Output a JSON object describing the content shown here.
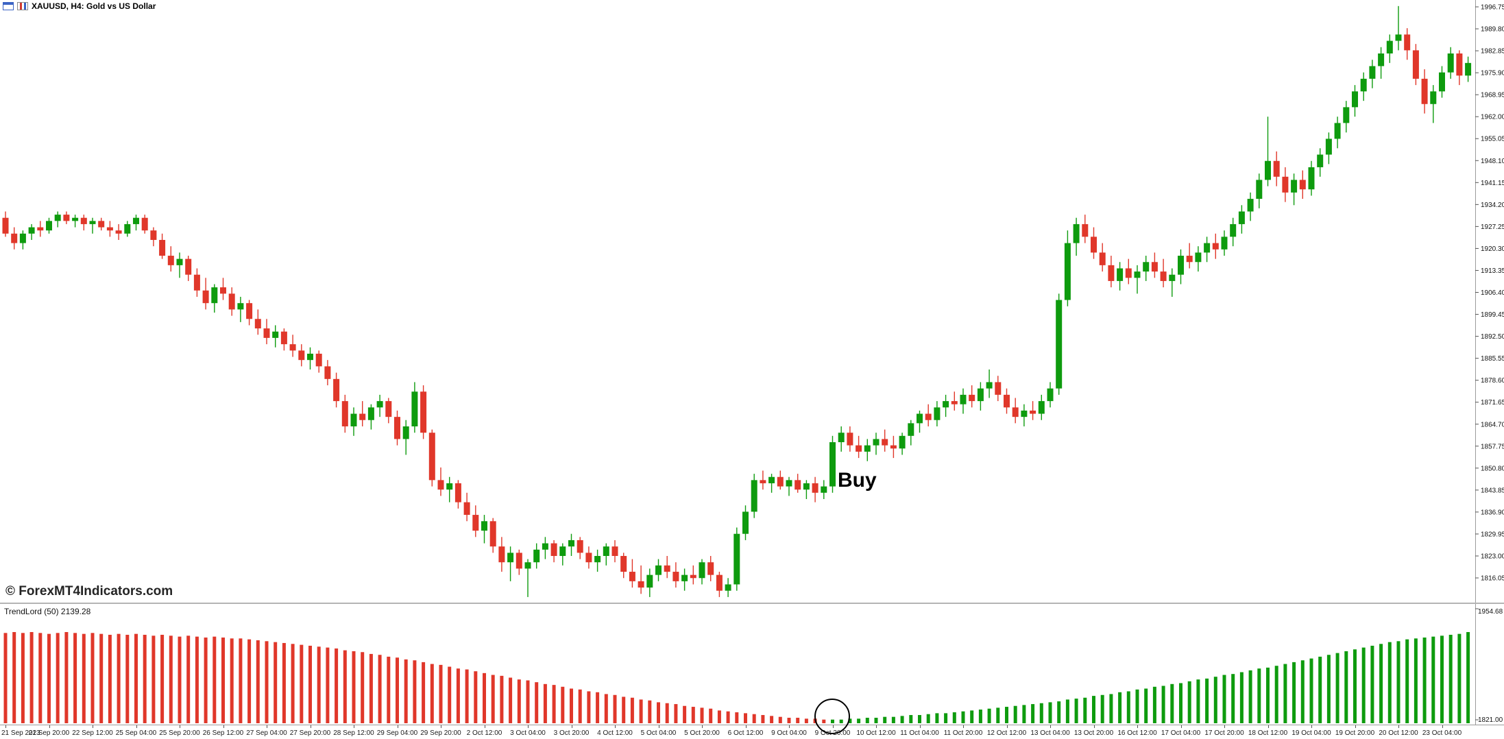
{
  "window": {
    "title": "XAUUSD, H4: Gold vs US Dollar",
    "icons": [
      "window-grid-icon",
      "candlestick-chart-icon"
    ]
  },
  "watermark": "© ForexMT4Indicators.com",
  "annotations": {
    "buy": "Buy"
  },
  "indicator": {
    "label": "TrendLord (50) 2139.28",
    "scale_max": "1954.68",
    "scale_min": "1821.00"
  },
  "colors": {
    "bull": "#0e9b0e",
    "bear": "#e0372a",
    "axis_text": "#111111",
    "separator": "#9a9a9a",
    "annotation": "#000000"
  },
  "chart_data": {
    "type": "candlestick",
    "symbol": "XAUUSD",
    "timeframe": "H4",
    "title": "XAUUSD, H4: Gold vs US Dollar",
    "price_axis": {
      "max": 1996.75,
      "step": 6.95,
      "labels": [
        "1996.75",
        "1989.80",
        "1982.85",
        "1975.90",
        "1968.95",
        "1962.00",
        "1955.05",
        "1948.10",
        "1941.15",
        "1934.20",
        "1927.25",
        "1920.30",
        "1913.35",
        "1906.40",
        "1899.45",
        "1892.50",
        "1885.55",
        "1878.60",
        "1871.65",
        "1864.70",
        "1857.75",
        "1850.80",
        "1843.85",
        "1836.90",
        "1829.95",
        "1823.00",
        "1816.05"
      ]
    },
    "time_axis": {
      "candles_per_label": 5,
      "labels": [
        "21 Sep 2023",
        "21 Sep 20:00",
        "22 Sep 12:00",
        "25 Sep 04:00",
        "25 Sep 20:00",
        "26 Sep 12:00",
        "27 Sep 04:00",
        "27 Sep 20:00",
        "28 Sep 12:00",
        "29 Sep 04:00",
        "29 Sep 20:00",
        "2 Oct 12:00",
        "3 Oct 04:00",
        "3 Oct 20:00",
        "4 Oct 12:00",
        "5 Oct 04:00",
        "5 Oct 20:00",
        "6 Oct 12:00",
        "9 Oct 04:00",
        "9 Oct 20:00",
        "10 Oct 12:00",
        "11 Oct 04:00",
        "11 Oct 20:00",
        "12 Oct 12:00",
        "13 Oct 04:00",
        "13 Oct 20:00",
        "16 Oct 12:00",
        "17 Oct 04:00",
        "17 Oct 20:00",
        "18 Oct 12:00",
        "19 Oct 04:00",
        "19 Oct 20:00",
        "20 Oct 12:00",
        "23 Oct 04:00"
      ]
    },
    "ohlc": [
      [
        1930,
        1932,
        1924,
        1925
      ],
      [
        1925,
        1927,
        1920,
        1922
      ],
      [
        1922,
        1926,
        1920,
        1925
      ],
      [
        1925,
        1928,
        1923,
        1927
      ],
      [
        1927,
        1929,
        1924,
        1926
      ],
      [
        1926,
        1930,
        1925,
        1929
      ],
      [
        1929,
        1932,
        1927,
        1931
      ],
      [
        1931,
        1932,
        1928,
        1929
      ],
      [
        1929,
        1931,
        1927,
        1930
      ],
      [
        1930,
        1931,
        1926,
        1928
      ],
      [
        1928,
        1930,
        1925,
        1929
      ],
      [
        1929,
        1930,
        1926,
        1927
      ],
      [
        1927,
        1929,
        1924,
        1926
      ],
      [
        1926,
        1928,
        1923,
        1925
      ],
      [
        1925,
        1929,
        1924,
        1928
      ],
      [
        1928,
        1931,
        1926,
        1930
      ],
      [
        1930,
        1931,
        1925,
        1926
      ],
      [
        1926,
        1927,
        1921,
        1923
      ],
      [
        1923,
        1925,
        1917,
        1918
      ],
      [
        1918,
        1921,
        1913,
        1915
      ],
      [
        1915,
        1919,
        1911,
        1917
      ],
      [
        1917,
        1918,
        1910,
        1912
      ],
      [
        1912,
        1914,
        1905,
        1907
      ],
      [
        1907,
        1911,
        1901,
        1903
      ],
      [
        1903,
        1909,
        1900,
        1908
      ],
      [
        1908,
        1911,
        1904,
        1906
      ],
      [
        1906,
        1908,
        1899,
        1901
      ],
      [
        1901,
        1905,
        1897,
        1903
      ],
      [
        1903,
        1904,
        1896,
        1898
      ],
      [
        1898,
        1901,
        1893,
        1895
      ],
      [
        1895,
        1898,
        1890,
        1892
      ],
      [
        1892,
        1896,
        1889,
        1894
      ],
      [
        1894,
        1895,
        1888,
        1890
      ],
      [
        1890,
        1893,
        1886,
        1888
      ],
      [
        1888,
        1890,
        1883,
        1885
      ],
      [
        1885,
        1889,
        1882,
        1887
      ],
      [
        1887,
        1888,
        1881,
        1883
      ],
      [
        1883,
        1885,
        1877,
        1879
      ],
      [
        1879,
        1881,
        1870,
        1872
      ],
      [
        1872,
        1874,
        1862,
        1864
      ],
      [
        1864,
        1870,
        1861,
        1868
      ],
      [
        1868,
        1872,
        1864,
        1866
      ],
      [
        1866,
        1871,
        1863,
        1870
      ],
      [
        1870,
        1874,
        1867,
        1872
      ],
      [
        1872,
        1873,
        1865,
        1867
      ],
      [
        1867,
        1869,
        1858,
        1860
      ],
      [
        1860,
        1866,
        1855,
        1864
      ],
      [
        1864,
        1878,
        1862,
        1875
      ],
      [
        1875,
        1877,
        1860,
        1862
      ],
      [
        1862,
        1863,
        1845,
        1847
      ],
      [
        1847,
        1851,
        1842,
        1844
      ],
      [
        1844,
        1848,
        1840,
        1846
      ],
      [
        1846,
        1847,
        1838,
        1840
      ],
      [
        1840,
        1843,
        1834,
        1836
      ],
      [
        1836,
        1839,
        1829,
        1831
      ],
      [
        1831,
        1836,
        1827,
        1834
      ],
      [
        1834,
        1835,
        1824,
        1826
      ],
      [
        1826,
        1829,
        1818,
        1821
      ],
      [
        1821,
        1826,
        1815,
        1824
      ],
      [
        1824,
        1825,
        1817,
        1819
      ],
      [
        1819,
        1822,
        1810,
        1821
      ],
      [
        1821,
        1827,
        1819,
        1825
      ],
      [
        1825,
        1829,
        1822,
        1827
      ],
      [
        1827,
        1828,
        1821,
        1823
      ],
      [
        1823,
        1827,
        1820,
        1826
      ],
      [
        1826,
        1830,
        1823,
        1828
      ],
      [
        1828,
        1829,
        1822,
        1824
      ],
      [
        1824,
        1826,
        1819,
        1821
      ],
      [
        1821,
        1825,
        1818,
        1823
      ],
      [
        1823,
        1827,
        1820,
        1826
      ],
      [
        1826,
        1828,
        1821,
        1823
      ],
      [
        1823,
        1824,
        1816,
        1818
      ],
      [
        1818,
        1822,
        1813,
        1815
      ],
      [
        1815,
        1820,
        1811,
        1813
      ],
      [
        1813,
        1819,
        1810,
        1817
      ],
      [
        1817,
        1822,
        1815,
        1820
      ],
      [
        1820,
        1823,
        1816,
        1818
      ],
      [
        1818,
        1821,
        1813,
        1815
      ],
      [
        1815,
        1819,
        1812,
        1817
      ],
      [
        1817,
        1820,
        1814,
        1816
      ],
      [
        1816,
        1822,
        1814,
        1821
      ],
      [
        1821,
        1823,
        1815,
        1817
      ],
      [
        1817,
        1818,
        1810,
        1812
      ],
      [
        1812,
        1816,
        1810,
        1814
      ],
      [
        1814,
        1832,
        1812,
        1830
      ],
      [
        1830,
        1839,
        1828,
        1837
      ],
      [
        1837,
        1849,
        1835,
        1847
      ],
      [
        1847,
        1850,
        1844,
        1846
      ],
      [
        1846,
        1849,
        1843,
        1848
      ],
      [
        1848,
        1850,
        1844,
        1845
      ],
      [
        1845,
        1848,
        1842,
        1847
      ],
      [
        1847,
        1849,
        1843,
        1844
      ],
      [
        1844,
        1847,
        1841,
        1846
      ],
      [
        1846,
        1848,
        1840,
        1843
      ],
      [
        1843,
        1847,
        1841,
        1845
      ],
      [
        1845,
        1861,
        1843,
        1859
      ],
      [
        1859,
        1864,
        1856,
        1862
      ],
      [
        1862,
        1864,
        1856,
        1858
      ],
      [
        1858,
        1861,
        1854,
        1856
      ],
      [
        1856,
        1860,
        1853,
        1858
      ],
      [
        1858,
        1862,
        1855,
        1860
      ],
      [
        1860,
        1863,
        1856,
        1858
      ],
      [
        1858,
        1861,
        1854,
        1857
      ],
      [
        1857,
        1862,
        1855,
        1861
      ],
      [
        1861,
        1866,
        1858,
        1865
      ],
      [
        1865,
        1869,
        1862,
        1868
      ],
      [
        1868,
        1871,
        1864,
        1866
      ],
      [
        1866,
        1872,
        1864,
        1870
      ],
      [
        1870,
        1874,
        1867,
        1872
      ],
      [
        1872,
        1875,
        1869,
        1871
      ],
      [
        1871,
        1876,
        1868,
        1874
      ],
      [
        1874,
        1877,
        1870,
        1872
      ],
      [
        1872,
        1878,
        1869,
        1876
      ],
      [
        1876,
        1882,
        1873,
        1878
      ],
      [
        1878,
        1880,
        1872,
        1874
      ],
      [
        1874,
        1876,
        1868,
        1870
      ],
      [
        1870,
        1873,
        1865,
        1867
      ],
      [
        1867,
        1871,
        1864,
        1869
      ],
      [
        1869,
        1872,
        1866,
        1868
      ],
      [
        1868,
        1874,
        1866,
        1872
      ],
      [
        1872,
        1878,
        1870,
        1876
      ],
      [
        1876,
        1906,
        1874,
        1904
      ],
      [
        1904,
        1926,
        1902,
        1922
      ],
      [
        1922,
        1930,
        1918,
        1928
      ],
      [
        1928,
        1931,
        1922,
        1924
      ],
      [
        1924,
        1927,
        1917,
        1919
      ],
      [
        1919,
        1922,
        1913,
        1915
      ],
      [
        1915,
        1918,
        1908,
        1910
      ],
      [
        1910,
        1916,
        1907,
        1914
      ],
      [
        1914,
        1917,
        1909,
        1911
      ],
      [
        1911,
        1915,
        1906,
        1913
      ],
      [
        1913,
        1918,
        1910,
        1916
      ],
      [
        1916,
        1919,
        1911,
        1913
      ],
      [
        1913,
        1917,
        1908,
        1910
      ],
      [
        1910,
        1914,
        1905,
        1912
      ],
      [
        1912,
        1920,
        1909,
        1918
      ],
      [
        1918,
        1922,
        1914,
        1916
      ],
      [
        1916,
        1921,
        1913,
        1919
      ],
      [
        1919,
        1924,
        1916,
        1922
      ],
      [
        1922,
        1925,
        1917,
        1920
      ],
      [
        1920,
        1926,
        1918,
        1924
      ],
      [
        1924,
        1930,
        1921,
        1928
      ],
      [
        1928,
        1934,
        1925,
        1932
      ],
      [
        1932,
        1938,
        1929,
        1936
      ],
      [
        1936,
        1944,
        1933,
        1942
      ],
      [
        1942,
        1962,
        1940,
        1948
      ],
      [
        1948,
        1951,
        1940,
        1943
      ],
      [
        1943,
        1946,
        1935,
        1938
      ],
      [
        1938,
        1944,
        1934,
        1942
      ],
      [
        1942,
        1945,
        1936,
        1939
      ],
      [
        1939,
        1948,
        1937,
        1946
      ],
      [
        1946,
        1952,
        1943,
        1950
      ],
      [
        1950,
        1957,
        1947,
        1955
      ],
      [
        1955,
        1962,
        1952,
        1960
      ],
      [
        1960,
        1967,
        1957,
        1965
      ],
      [
        1965,
        1972,
        1962,
        1970
      ],
      [
        1970,
        1976,
        1967,
        1974
      ],
      [
        1974,
        1980,
        1971,
        1978
      ],
      [
        1978,
        1984,
        1974,
        1982
      ],
      [
        1982,
        1988,
        1979,
        1986
      ],
      [
        1986,
        1997,
        1983,
        1988
      ],
      [
        1988,
        1990,
        1980,
        1983
      ],
      [
        1983,
        1985,
        1972,
        1974
      ],
      [
        1974,
        1977,
        1963,
        1966
      ],
      [
        1966,
        1972,
        1960,
        1970
      ],
      [
        1970,
        1978,
        1968,
        1976
      ],
      [
        1976,
        1984,
        1974,
        1982
      ],
      [
        1982,
        1983,
        1972,
        1975
      ],
      [
        1975,
        1981,
        1973,
        1979
      ]
    ],
    "indicator_histogram": {
      "name": "TrendLord",
      "period": 50,
      "value_label": "2139.28",
      "scale_max": 1954.68,
      "scale_min": 1821.0,
      "segments": [
        {
          "color": "bear",
          "count": 95
        },
        {
          "color": "bull",
          "count": 74
        }
      ],
      "signal_circle_index": 95,
      "heights": [
        0.99,
        1,
        0.99,
        1,
        0.99,
        0.98,
        0.99,
        1,
        0.99,
        0.98,
        0.99,
        0.98,
        0.97,
        0.98,
        0.97,
        0.98,
        0.97,
        0.96,
        0.97,
        0.96,
        0.95,
        0.96,
        0.95,
        0.94,
        0.95,
        0.94,
        0.93,
        0.93,
        0.92,
        0.91,
        0.9,
        0.89,
        0.88,
        0.87,
        0.86,
        0.85,
        0.84,
        0.83,
        0.82,
        0.8,
        0.79,
        0.78,
        0.76,
        0.75,
        0.73,
        0.72,
        0.7,
        0.69,
        0.67,
        0.65,
        0.64,
        0.62,
        0.6,
        0.59,
        0.57,
        0.55,
        0.53,
        0.52,
        0.5,
        0.48,
        0.47,
        0.45,
        0.43,
        0.42,
        0.4,
        0.38,
        0.37,
        0.35,
        0.34,
        0.32,
        0.31,
        0.29,
        0.28,
        0.26,
        0.25,
        0.23,
        0.22,
        0.21,
        0.19,
        0.18,
        0.17,
        0.16,
        0.14,
        0.13,
        0.12,
        0.11,
        0.1,
        0.09,
        0.08,
        0.07,
        0.06,
        0.06,
        0.05,
        0.05,
        0.04,
        0.04,
        0.04,
        0.05,
        0.05,
        0.06,
        0.06,
        0.07,
        0.07,
        0.08,
        0.09,
        0.09,
        0.1,
        0.11,
        0.11,
        0.12,
        0.13,
        0.14,
        0.15,
        0.16,
        0.17,
        0.18,
        0.19,
        0.2,
        0.21,
        0.22,
        0.23,
        0.24,
        0.26,
        0.27,
        0.28,
        0.3,
        0.31,
        0.32,
        0.34,
        0.35,
        0.37,
        0.38,
        0.4,
        0.41,
        0.43,
        0.44,
        0.46,
        0.48,
        0.49,
        0.51,
        0.53,
        0.54,
        0.56,
        0.58,
        0.6,
        0.61,
        0.63,
        0.65,
        0.67,
        0.69,
        0.71,
        0.73,
        0.75,
        0.77,
        0.79,
        0.81,
        0.83,
        0.85,
        0.87,
        0.89,
        0.9,
        0.92,
        0.93,
        0.94,
        0.95,
        0.96,
        0.97,
        0.98,
        1.0
      ]
    },
    "buy_signal_index": 95
  }
}
